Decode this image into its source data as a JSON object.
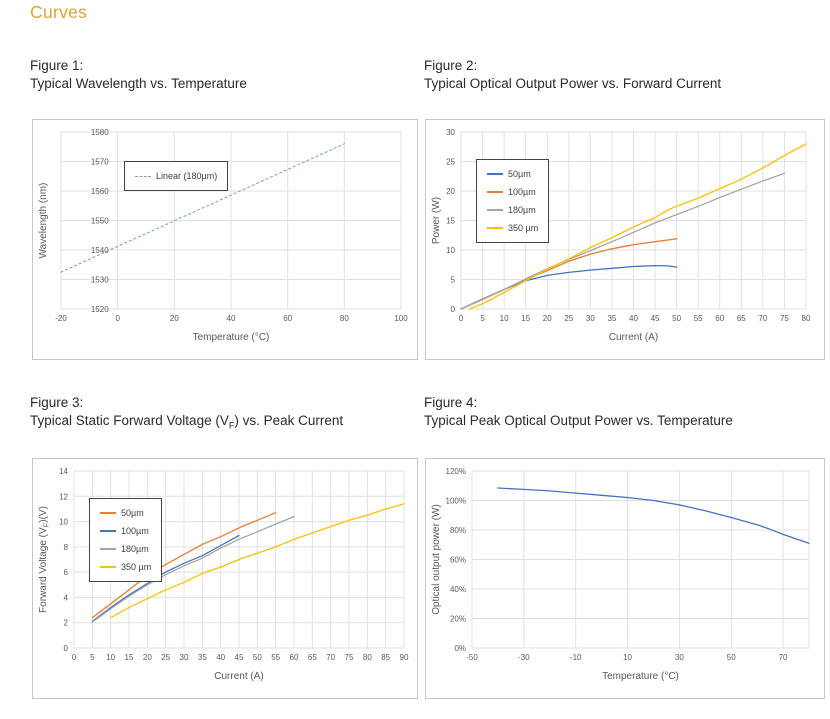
{
  "page": {
    "heading": "Curves",
    "colors": {
      "accent": "#D8A62A",
      "heading_text": "#2B2A29",
      "grid": "#E0E0E0",
      "tick_text": "#595959",
      "panel_border": "#C6C6C6",
      "series_blue": "#4472C4",
      "series_orange": "#ED7D31",
      "series_gray": "#A5A5A5",
      "series_yellow": "#FFC000",
      "trendline_blue": "#7E9CD8"
    }
  },
  "chart_data": [
    {
      "figure_label": "Figure 1:",
      "title": "Typical Wavelength vs. Temperature",
      "type": "line",
      "xlabel": "Temperature (°C)",
      "ylabel": "Wavelength (nm)",
      "xlim": [
        -20,
        100
      ],
      "ylim": [
        1520,
        1580
      ],
      "x_ticks": [
        -20,
        0,
        20,
        40,
        60,
        80,
        100
      ],
      "x_tick_labels": [
        "-20",
        "0",
        "20",
        "40",
        "60",
        "80",
        "100"
      ],
      "y_ticks": [
        1520,
        1530,
        1540,
        1550,
        1560,
        1570,
        1580
      ],
      "y_tick_labels": [
        "1520",
        "1530",
        "1540",
        "1550",
        "1560",
        "1570",
        "1580"
      ],
      "grid": true,
      "ylabels_at_x": 0,
      "layout": {
        "ml": 28,
        "mt": 12,
        "mr": 16,
        "mb": 50
      },
      "legend": {
        "show": true,
        "left": 91,
        "top": 41
      },
      "series": [
        {
          "name": "Linear (180µm)",
          "color": "#7E9CD8",
          "dash": "2 3",
          "width": 1.1,
          "points": [
            [
              -20,
              1532.5
            ],
            [
              80,
              1576
            ]
          ]
        }
      ]
    },
    {
      "figure_label": "Figure 2:",
      "title": "Typical Optical Output Power vs. Forward Current",
      "type": "line",
      "xlabel": "Current (A)",
      "ylabel": "Power (W)",
      "xlim": [
        0,
        80
      ],
      "ylim": [
        0,
        30
      ],
      "x_ticks": [
        0,
        5,
        10,
        15,
        20,
        25,
        30,
        35,
        40,
        45,
        50,
        55,
        60,
        65,
        70,
        75,
        80
      ],
      "x_tick_labels": [
        "0",
        "5",
        "10",
        "15",
        "20",
        "25",
        "30",
        "35",
        "40",
        "45",
        "50",
        "55",
        "60",
        "65",
        "70",
        "75",
        "80"
      ],
      "y_ticks": [
        0,
        5,
        10,
        15,
        20,
        25,
        30
      ],
      "y_tick_labels": [
        "0",
        "5",
        "10",
        "15",
        "20",
        "25",
        "30"
      ],
      "grid": true,
      "layout": {
        "ml": 35,
        "mt": 12,
        "mr": 18,
        "mb": 50
      },
      "legend": {
        "show": true,
        "left": 50,
        "top": 39
      },
      "series": [
        {
          "name": "50µm",
          "color": "#4472C4",
          "width": 1.3,
          "points": [
            [
              0,
              0
            ],
            [
              5,
              1.7
            ],
            [
              10,
              3.3
            ],
            [
              15,
              4.8
            ],
            [
              20,
              5.7
            ],
            [
              25,
              6.2
            ],
            [
              30,
              6.6
            ],
            [
              35,
              6.9
            ],
            [
              40,
              7.2
            ],
            [
              45,
              7.35
            ],
            [
              48,
              7.3
            ],
            [
              50,
              7.1
            ]
          ]
        },
        {
          "name": "100µm",
          "color": "#ED7D31",
          "width": 1.3,
          "points": [
            [
              0,
              0
            ],
            [
              5,
              1.7
            ],
            [
              10,
              3.3
            ],
            [
              15,
              5.0
            ],
            [
              20,
              6.5
            ],
            [
              25,
              8.1
            ],
            [
              30,
              9.3
            ],
            [
              35,
              10.2
            ],
            [
              40,
              10.9
            ],
            [
              45,
              11.4
            ],
            [
              48,
              11.7
            ],
            [
              50,
              11.9
            ]
          ]
        },
        {
          "name": "180µm",
          "color": "#A5A5A5",
          "width": 1.3,
          "points": [
            [
              0,
              0
            ],
            [
              5,
              1.6
            ],
            [
              10,
              3.3
            ],
            [
              15,
              5.1
            ],
            [
              20,
              6.8
            ],
            [
              25,
              8.4
            ],
            [
              30,
              9.9
            ],
            [
              35,
              11.4
            ],
            [
              40,
              13.0
            ],
            [
              45,
              14.6
            ],
            [
              50,
              16.0
            ],
            [
              55,
              17.4
            ],
            [
              60,
              18.9
            ],
            [
              65,
              20.3
            ],
            [
              70,
              21.7
            ],
            [
              75,
              23.0
            ]
          ]
        },
        {
          "name": "350 µm",
          "color": "#FFC000",
          "width": 1.3,
          "points": [
            [
              2,
              0
            ],
            [
              5,
              0.9
            ],
            [
              10,
              2.8
            ],
            [
              15,
              4.8
            ],
            [
              20,
              6.7
            ],
            [
              25,
              8.5
            ],
            [
              30,
              10.4
            ],
            [
              35,
              12.1
            ],
            [
              40,
              13.9
            ],
            [
              45,
              15.5
            ],
            [
              48,
              16.8
            ],
            [
              50,
              17.4
            ],
            [
              55,
              18.8
            ],
            [
              60,
              20.4
            ],
            [
              65,
              22.0
            ],
            [
              70,
              23.9
            ],
            [
              75,
              26.0
            ],
            [
              80,
              28.0
            ]
          ]
        }
      ]
    },
    {
      "figure_label": "Figure 3:",
      "title": "Typical Static Forward Voltage (VF) vs. Peak Current",
      "title_pre": "Typical Static Forward Voltage (V",
      "title_sub": "F",
      "title_post": ") vs. Peak Current",
      "type": "line",
      "xlabel": "Current (A)",
      "ylabel": [
        "Forward Voltage  (V",
        {
          "sub": "F"
        },
        ")(V)"
      ],
      "xlim": [
        0,
        90
      ],
      "ylim": [
        0,
        14
      ],
      "x_ticks": [
        0,
        5,
        10,
        15,
        20,
        25,
        30,
        35,
        40,
        45,
        50,
        55,
        60,
        65,
        70,
        75,
        80,
        85,
        90
      ],
      "x_tick_labels": [
        "0",
        "5",
        "10",
        "15",
        "20",
        "25",
        "30",
        "35",
        "40",
        "45",
        "50",
        "55",
        "60",
        "65",
        "70",
        "75",
        "80",
        "85",
        "90"
      ],
      "y_ticks": [
        0,
        2,
        4,
        6,
        8,
        10,
        12,
        14
      ],
      "y_tick_labels": [
        "0",
        "2",
        "4",
        "6",
        "8",
        "10",
        "12",
        "14"
      ],
      "grid": true,
      "layout": {
        "ml": 41,
        "mt": 12,
        "mr": 13,
        "mb": 50
      },
      "legend": {
        "show": true,
        "left": 56,
        "top": 39
      },
      "series": [
        {
          "name": "50µm",
          "color": "#ED7D31",
          "width": 1.3,
          "points": [
            [
              5,
              2.4
            ],
            [
              10,
              3.5
            ],
            [
              15,
              4.6
            ],
            [
              20,
              5.7
            ],
            [
              25,
              6.6
            ],
            [
              30,
              7.4
            ],
            [
              35,
              8.2
            ],
            [
              40,
              8.8
            ],
            [
              45,
              9.5
            ],
            [
              50,
              10.1
            ],
            [
              55,
              10.7
            ]
          ]
        },
        {
          "name": "100µm",
          "color": "#4472C4",
          "width": 1.3,
          "points": [
            [
              5,
              2.1
            ],
            [
              10,
              3.2
            ],
            [
              15,
              4.2
            ],
            [
              20,
              5.1
            ],
            [
              25,
              6.0
            ],
            [
              30,
              6.7
            ],
            [
              35,
              7.3
            ],
            [
              40,
              8.1
            ],
            [
              45,
              8.9
            ]
          ]
        },
        {
          "name": "180µm",
          "color": "#A5A5A5",
          "width": 1.3,
          "points": [
            [
              5,
              2.05
            ],
            [
              10,
              3.1
            ],
            [
              15,
              4.1
            ],
            [
              20,
              5.0
            ],
            [
              25,
              5.8
            ],
            [
              30,
              6.5
            ],
            [
              35,
              7.1
            ],
            [
              40,
              7.9
            ],
            [
              45,
              8.6
            ],
            [
              50,
              9.2
            ],
            [
              55,
              9.8
            ],
            [
              60,
              10.4
            ]
          ]
        },
        {
          "name": "350 µm",
          "color": "#FFC000",
          "width": 1.3,
          "points": [
            [
              10,
              2.4
            ],
            [
              15,
              3.2
            ],
            [
              20,
              3.9
            ],
            [
              25,
              4.6
            ],
            [
              30,
              5.2
            ],
            [
              35,
              5.9
            ],
            [
              40,
              6.4
            ],
            [
              45,
              7.0
            ],
            [
              50,
              7.5
            ],
            [
              55,
              8.0
            ],
            [
              60,
              8.6
            ],
            [
              65,
              9.1
            ],
            [
              70,
              9.6
            ],
            [
              75,
              10.1
            ],
            [
              80,
              10.5
            ],
            [
              85,
              11.0
            ],
            [
              90,
              11.4
            ]
          ]
        }
      ]
    },
    {
      "figure_label": "Figure 4:",
      "title": "Typical Peak Optical Output Power vs. Temperature",
      "type": "line",
      "xlabel": "Temperature (°C)",
      "ylabel": "Optical output power (W)",
      "xlim": [
        -50,
        80
      ],
      "ylim": [
        0,
        120
      ],
      "x_ticks": [
        -50,
        -30,
        -10,
        10,
        30,
        50,
        70
      ],
      "x_tick_labels": [
        "-50",
        "-30",
        "-10",
        "10",
        "30",
        "50",
        "70"
      ],
      "y_ticks": [
        0,
        20,
        40,
        60,
        80,
        100,
        120
      ],
      "y_tick_labels": [
        "0%",
        "20%",
        "40%",
        "60%",
        "80%",
        "100%",
        "120%"
      ],
      "grid": true,
      "layout": {
        "ml": 46,
        "mt": 12,
        "mr": 15,
        "mb": 50
      },
      "legend": {
        "show": false
      },
      "series": [
        {
          "name": "Optical output power",
          "color": "#4472C4",
          "width": 1.3,
          "points": [
            [
              -40,
              108.5
            ],
            [
              -30,
              107.5
            ],
            [
              -20,
              106.5
            ],
            [
              -10,
              105
            ],
            [
              0,
              103.5
            ],
            [
              10,
              102
            ],
            [
              20,
              100
            ],
            [
              30,
              97
            ],
            [
              40,
              93
            ],
            [
              50,
              88.5
            ],
            [
              60,
              83.5
            ],
            [
              65,
              80.5
            ],
            [
              70,
              77
            ],
            [
              75,
              74
            ],
            [
              80,
              71
            ]
          ]
        }
      ]
    }
  ]
}
